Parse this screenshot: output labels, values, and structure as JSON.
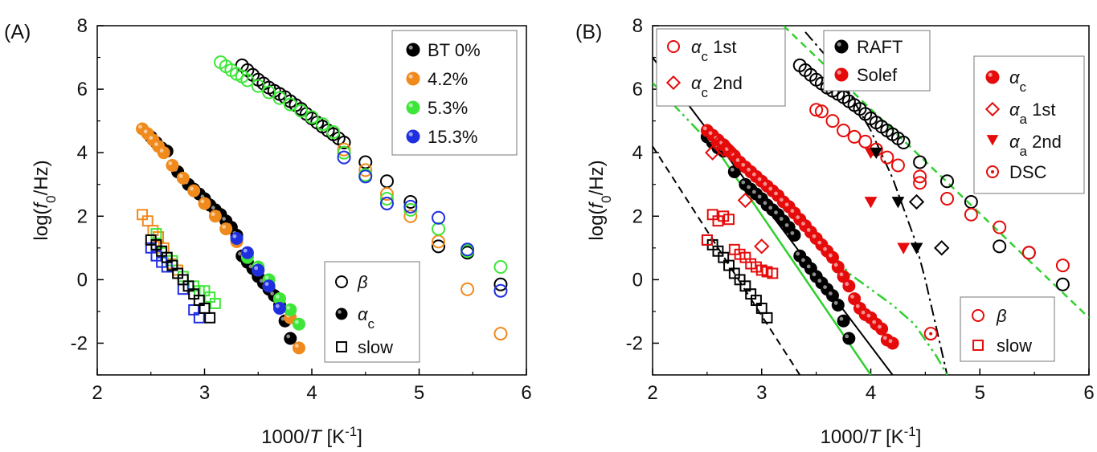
{
  "colors": {
    "black": "#000000",
    "orange": "#f08a1c",
    "green": "#3ee63a",
    "blue": "#1f2fe0",
    "red": "#e60b0b",
    "fitgreen": "#2fd02f"
  },
  "chart_data": [
    {
      "type": "scatter",
      "panel_label": "(A)",
      "xlabel": "1000/T [K⁻¹]",
      "ylabel": "log(f₀/Hz)",
      "xlim": [
        2,
        6
      ],
      "ylim": [
        -3,
        8
      ],
      "xticks": [
        "2",
        "3",
        "4",
        "5",
        "6"
      ],
      "yticks": [
        "-2",
        "0",
        "2",
        "4",
        "6",
        "8"
      ],
      "legend_color": {
        "position": "top-right",
        "entries": [
          "BT 0%",
          "4.2%",
          "5.3%",
          "15.3%"
        ]
      },
      "legend_process": {
        "position": "bottom-right",
        "entries": [
          "β",
          "αc",
          "slow"
        ]
      },
      "series": [
        {
          "name": "BT 0%",
          "process": "beta",
          "color": "black",
          "marker": "open-circle",
          "x": [
            3.35,
            3.4,
            3.45,
            3.5,
            3.55,
            3.6,
            3.65,
            3.7,
            3.75,
            3.8,
            3.85,
            3.9,
            3.95,
            4.0,
            4.05,
            4.1,
            4.15,
            4.2,
            4.25,
            4.3,
            4.5,
            4.7,
            4.92,
            5.18,
            5.45,
            5.76
          ],
          "y": [
            6.75,
            6.6,
            6.45,
            6.3,
            6.18,
            6.05,
            5.95,
            5.85,
            5.75,
            5.62,
            5.5,
            5.38,
            5.22,
            5.08,
            4.95,
            4.82,
            4.7,
            4.58,
            4.45,
            4.32,
            3.7,
            3.1,
            2.45,
            1.05,
            0.85,
            -0.15
          ]
        },
        {
          "name": "4.2%",
          "process": "beta",
          "color": "orange",
          "marker": "open-circle",
          "x": [
            4.3,
            4.5,
            4.7,
            4.92,
            5.18,
            5.45,
            5.76
          ],
          "y": [
            4.1,
            3.45,
            2.7,
            2.0,
            1.2,
            -0.3,
            -1.7
          ]
        },
        {
          "name": "5.3%",
          "process": "beta",
          "color": "green",
          "marker": "open-circle",
          "x": [
            3.15,
            3.2,
            3.25,
            3.3,
            3.35,
            3.4,
            3.5,
            3.6,
            3.7,
            3.8,
            3.9,
            4.0,
            4.1,
            4.2,
            4.3,
            4.5,
            4.7,
            4.92,
            5.18,
            5.45,
            5.76
          ],
          "y": [
            6.85,
            6.72,
            6.6,
            6.48,
            6.4,
            6.28,
            6.1,
            5.9,
            5.72,
            5.52,
            5.32,
            5.12,
            4.9,
            4.65,
            4.0,
            3.3,
            2.55,
            2.2,
            1.6,
            0.9,
            0.4
          ]
        },
        {
          "name": "15.3%",
          "process": "beta",
          "color": "blue",
          "marker": "open-circle",
          "x": [
            4.3,
            4.5,
            4.7,
            4.92,
            5.18,
            5.45,
            5.76
          ],
          "y": [
            3.85,
            3.25,
            2.4,
            2.3,
            1.95,
            0.95,
            -0.35
          ]
        },
        {
          "name": "BT 0%",
          "process": "alpha_c",
          "color": "black",
          "marker": "filled-circle",
          "x": [
            2.5,
            2.55,
            2.6,
            2.65,
            2.75,
            2.85,
            2.9,
            2.95,
            3.0,
            3.05,
            3.1,
            3.15,
            3.2,
            3.25,
            3.3,
            3.35,
            3.4,
            3.45,
            3.5,
            3.55,
            3.6,
            3.65,
            3.7,
            3.75,
            3.8
          ],
          "y": [
            4.5,
            4.32,
            4.15,
            4.05,
            3.4,
            3.0,
            2.85,
            2.7,
            2.55,
            2.35,
            2.2,
            2.05,
            1.85,
            1.65,
            1.4,
            0.75,
            0.55,
            0.35,
            0.1,
            -0.1,
            -0.3,
            -0.5,
            -0.8,
            -1.3,
            -1.85
          ]
        },
        {
          "name": "4.2%",
          "process": "alpha_c",
          "color": "orange",
          "marker": "filled-circle",
          "x": [
            2.42,
            2.47,
            2.52,
            2.57,
            2.62,
            2.7,
            2.8,
            2.9,
            3.0,
            3.1,
            3.2,
            3.3,
            3.4,
            3.5,
            3.6,
            3.7,
            3.8,
            3.88
          ],
          "y": [
            4.75,
            4.6,
            4.4,
            4.2,
            4.0,
            3.6,
            3.2,
            2.8,
            2.4,
            2.0,
            1.6,
            1.2,
            0.75,
            0.3,
            -0.2,
            -0.6,
            -1.2,
            -2.15
          ]
        },
        {
          "name": "5.3%",
          "process": "alpha_c",
          "color": "green",
          "marker": "filled-circle",
          "x": [
            3.4,
            3.5,
            3.6,
            3.7,
            3.8,
            3.88
          ],
          "y": [
            0.7,
            0.4,
            0.0,
            -0.6,
            -0.95,
            -1.4
          ]
        },
        {
          "name": "15.3%",
          "process": "alpha_c",
          "color": "blue",
          "marker": "filled-circle",
          "x": [
            3.3,
            3.4,
            3.5,
            3.6,
            3.7
          ],
          "y": [
            1.3,
            0.85,
            0.3,
            -0.2,
            -0.9
          ]
        },
        {
          "name": "4.2%",
          "process": "slow",
          "color": "orange",
          "marker": "open-square",
          "x": [
            2.42,
            2.47,
            2.52,
            2.57,
            2.62,
            2.7,
            2.75
          ],
          "y": [
            2.05,
            1.85,
            1.55,
            1.35,
            1.0,
            0.5,
            0.3
          ]
        },
        {
          "name": "5.3%",
          "process": "slow",
          "color": "green",
          "marker": "open-square",
          "x": [
            2.55,
            2.6,
            2.65,
            2.7,
            2.8,
            2.9,
            2.95,
            3.0,
            3.05,
            3.1
          ],
          "y": [
            1.45,
            0.85,
            0.7,
            0.6,
            0.1,
            -0.2,
            -0.35,
            -0.35,
            -0.55,
            -0.75
          ]
        },
        {
          "name": "15.3%",
          "process": "slow",
          "color": "blue",
          "marker": "open-square",
          "x": [
            2.5,
            2.55,
            2.6,
            2.65,
            2.8,
            2.9,
            2.95
          ],
          "y": [
            1.0,
            0.75,
            0.55,
            0.4,
            -0.3,
            -0.95,
            -1.2
          ]
        },
        {
          "name": "BT 0%",
          "process": "slow",
          "color": "black",
          "marker": "open-square",
          "x": [
            2.5,
            2.55,
            2.6,
            2.65,
            2.7,
            2.75,
            2.8,
            2.85,
            2.9,
            2.95,
            3.0,
            3.05
          ],
          "y": [
            1.25,
            1.1,
            0.9,
            0.7,
            0.45,
            0.2,
            0.0,
            -0.2,
            -0.45,
            -0.65,
            -0.9,
            -1.2
          ]
        }
      ]
    },
    {
      "type": "scatter",
      "panel_label": "(B)",
      "xlabel": "1000/T [K⁻¹]",
      "ylabel": "log(f₀/Hz)",
      "xlim": [
        2,
        6
      ],
      "ylim": [
        -3,
        8
      ],
      "xticks": [
        "2",
        "3",
        "4",
        "5",
        "6"
      ],
      "yticks": [
        "-2",
        "0",
        "2",
        "4",
        "6",
        "8"
      ],
      "legend_dsc": {
        "position": "top-left",
        "entries": [
          "αc 1st",
          "αc 2nd"
        ]
      },
      "legend_sample": {
        "position": "top-center",
        "entries": [
          "RAFT",
          "Solef"
        ]
      },
      "legend_process": {
        "position": "top-right",
        "entries": [
          "αc",
          "αa 1st",
          "αa 2nd",
          "DSC"
        ]
      },
      "legend_beta": {
        "position": "bottom-right",
        "entries": [
          "β",
          "slow"
        ]
      },
      "series": [
        {
          "name": "RAFT β",
          "color": "black",
          "marker": "open-circle",
          "x": [
            3.35,
            3.4,
            3.45,
            3.5,
            3.55,
            3.6,
            3.65,
            3.7,
            3.75,
            3.8,
            3.85,
            3.9,
            3.95,
            4.0,
            4.05,
            4.1,
            4.15,
            4.2,
            4.25,
            4.3,
            4.45,
            4.7,
            4.92,
            5.18,
            5.45,
            5.76
          ],
          "y": [
            6.75,
            6.6,
            6.45,
            6.3,
            6.18,
            6.05,
            5.95,
            5.85,
            5.75,
            5.62,
            5.5,
            5.38,
            5.22,
            5.08,
            4.95,
            4.82,
            4.7,
            4.58,
            4.45,
            4.32,
            3.7,
            3.1,
            2.45,
            1.05,
            0.85,
            -0.15
          ]
        },
        {
          "name": "Solef β",
          "color": "red",
          "marker": "open-circle",
          "x": [
            3.5,
            3.55,
            3.65,
            3.75,
            3.85,
            3.95,
            4.05,
            4.15,
            4.25,
            4.45,
            4.45,
            4.7,
            4.92,
            5.18,
            5.45,
            5.76
          ],
          "y": [
            5.35,
            5.3,
            5.0,
            4.7,
            4.5,
            4.35,
            4.1,
            3.85,
            3.6,
            3.25,
            3.05,
            2.55,
            2.05,
            1.65,
            0.85,
            0.45
          ]
        },
        {
          "name": "RAFT αc",
          "color": "black",
          "marker": "filled-circle",
          "x": [
            2.5,
            2.55,
            2.6,
            2.65,
            2.75,
            2.85,
            2.9,
            2.95,
            3.0,
            3.05,
            3.1,
            3.15,
            3.2,
            3.25,
            3.3,
            3.35,
            3.4,
            3.45,
            3.5,
            3.55,
            3.6,
            3.65,
            3.7,
            3.75,
            3.8
          ],
          "y": [
            4.5,
            4.32,
            4.15,
            4.05,
            3.4,
            3.0,
            2.85,
            2.7,
            2.55,
            2.35,
            2.2,
            2.05,
            1.85,
            1.65,
            1.4,
            0.75,
            0.55,
            0.35,
            0.1,
            -0.1,
            -0.3,
            -0.5,
            -0.8,
            -1.3,
            -1.85
          ]
        },
        {
          "name": "Solef αc",
          "color": "red",
          "marker": "filled-circle",
          "x": [
            2.5,
            2.55,
            2.6,
            2.65,
            2.7,
            2.75,
            2.8,
            2.85,
            2.9,
            2.95,
            3.0,
            3.05,
            3.1,
            3.15,
            3.2,
            3.25,
            3.3,
            3.35,
            3.4,
            3.45,
            3.5,
            3.55,
            3.6,
            3.65,
            3.7,
            3.75,
            3.8,
            3.85,
            3.9,
            3.95,
            4.0,
            4.05,
            4.1,
            4.15,
            4.2
          ],
          "y": [
            4.7,
            4.55,
            4.4,
            4.25,
            4.05,
            3.9,
            3.7,
            3.55,
            3.4,
            3.25,
            3.1,
            2.95,
            2.8,
            2.65,
            2.45,
            2.3,
            2.1,
            1.9,
            1.7,
            1.5,
            1.3,
            1.1,
            0.9,
            0.7,
            0.4,
            0.1,
            -0.2,
            -0.6,
            -0.9,
            -1.1,
            -1.2,
            -1.4,
            -1.55,
            -1.9,
            -2.0
          ]
        },
        {
          "name": "RAFT slow",
          "color": "black",
          "marker": "open-square",
          "x": [
            2.5,
            2.55,
            2.6,
            2.65,
            2.7,
            2.75,
            2.8,
            2.85,
            2.9,
            2.95,
            3.0,
            3.05
          ],
          "y": [
            1.25,
            1.1,
            0.9,
            0.7,
            0.45,
            0.2,
            0.0,
            -0.2,
            -0.45,
            -0.65,
            -0.9,
            -1.2
          ]
        },
        {
          "name": "Solef slow",
          "color": "red",
          "marker": "open-square",
          "x": [
            2.5,
            2.55,
            2.6,
            2.65,
            2.7,
            2.75,
            2.8,
            2.85,
            2.9,
            2.95,
            3.0,
            3.05,
            3.1
          ],
          "y": [
            1.25,
            2.05,
            1.85,
            2.0,
            1.9,
            0.95,
            0.8,
            0.7,
            0.5,
            0.4,
            0.3,
            0.25,
            0.2
          ]
        },
        {
          "name": "Solef αc 2nd",
          "color": "red",
          "marker": "open-diamond",
          "x": [
            2.55,
            2.6,
            2.65,
            2.7,
            2.85,
            3.0
          ],
          "y": [
            4.0,
            4.3,
            4.1,
            4.1,
            2.5,
            1.05
          ]
        },
        {
          "name": "RAFT αa 1st",
          "color": "black",
          "marker": "open-diamond",
          "x": [
            4.42,
            4.65
          ],
          "y": [
            2.45,
            1.0
          ]
        },
        {
          "name": "Solef αa 2nd",
          "color": "red",
          "marker": "filled-triangle",
          "x": [
            4.0,
            4.0,
            4.3
          ],
          "y": [
            4.0,
            2.45,
            1.0
          ]
        },
        {
          "name": "RAFT αa 2nd",
          "color": "black",
          "marker": "filled-triangle",
          "x": [
            4.05,
            4.25,
            4.42
          ],
          "y": [
            4.0,
            2.45,
            1.0
          ]
        },
        {
          "name": "DSC",
          "color": "red",
          "marker": "dot-circle",
          "x": [
            4.55
          ],
          "y": [
            -1.7
          ]
        }
      ],
      "fits": [
        {
          "style": "solid",
          "color": "black",
          "kind": "linear",
          "from": [
            2.0,
            7.0
          ],
          "to": [
            4.2,
            -3.0
          ]
        },
        {
          "style": "solid",
          "color": "fitgreen",
          "kind": "linear",
          "from": [
            2.5,
            4.55
          ],
          "to": [
            4.0,
            -3.0
          ]
        },
        {
          "style": "dashed",
          "color": "black",
          "kind": "linear",
          "from": [
            2.0,
            4.2
          ],
          "to": [
            3.35,
            -3.0
          ]
        },
        {
          "style": "dashed",
          "color": "fitgreen",
          "kind": "linear",
          "from": [
            3.2,
            8.0
          ],
          "to": [
            6.0,
            -1.2
          ]
        },
        {
          "style": "dashdot",
          "color": "black",
          "kind": "vft",
          "x": [
            3.4,
            3.6,
            3.8,
            4.0,
            4.2,
            4.4,
            4.5,
            4.6,
            4.7
          ],
          "y": [
            7.8,
            7.0,
            5.9,
            4.7,
            3.2,
            1.3,
            0.0,
            -1.5,
            -3.0
          ]
        },
        {
          "style": "dashdotdot",
          "color": "fitgreen",
          "kind": "vft",
          "x": [
            2.0,
            2.5,
            3.0,
            3.5,
            3.8,
            4.0,
            4.2,
            4.4,
            4.6,
            4.7
          ],
          "y": [
            6.2,
            4.4,
            3.0,
            1.4,
            0.2,
            -0.3,
            -0.8,
            -1.4,
            -2.4,
            -3.0
          ]
        }
      ]
    }
  ]
}
